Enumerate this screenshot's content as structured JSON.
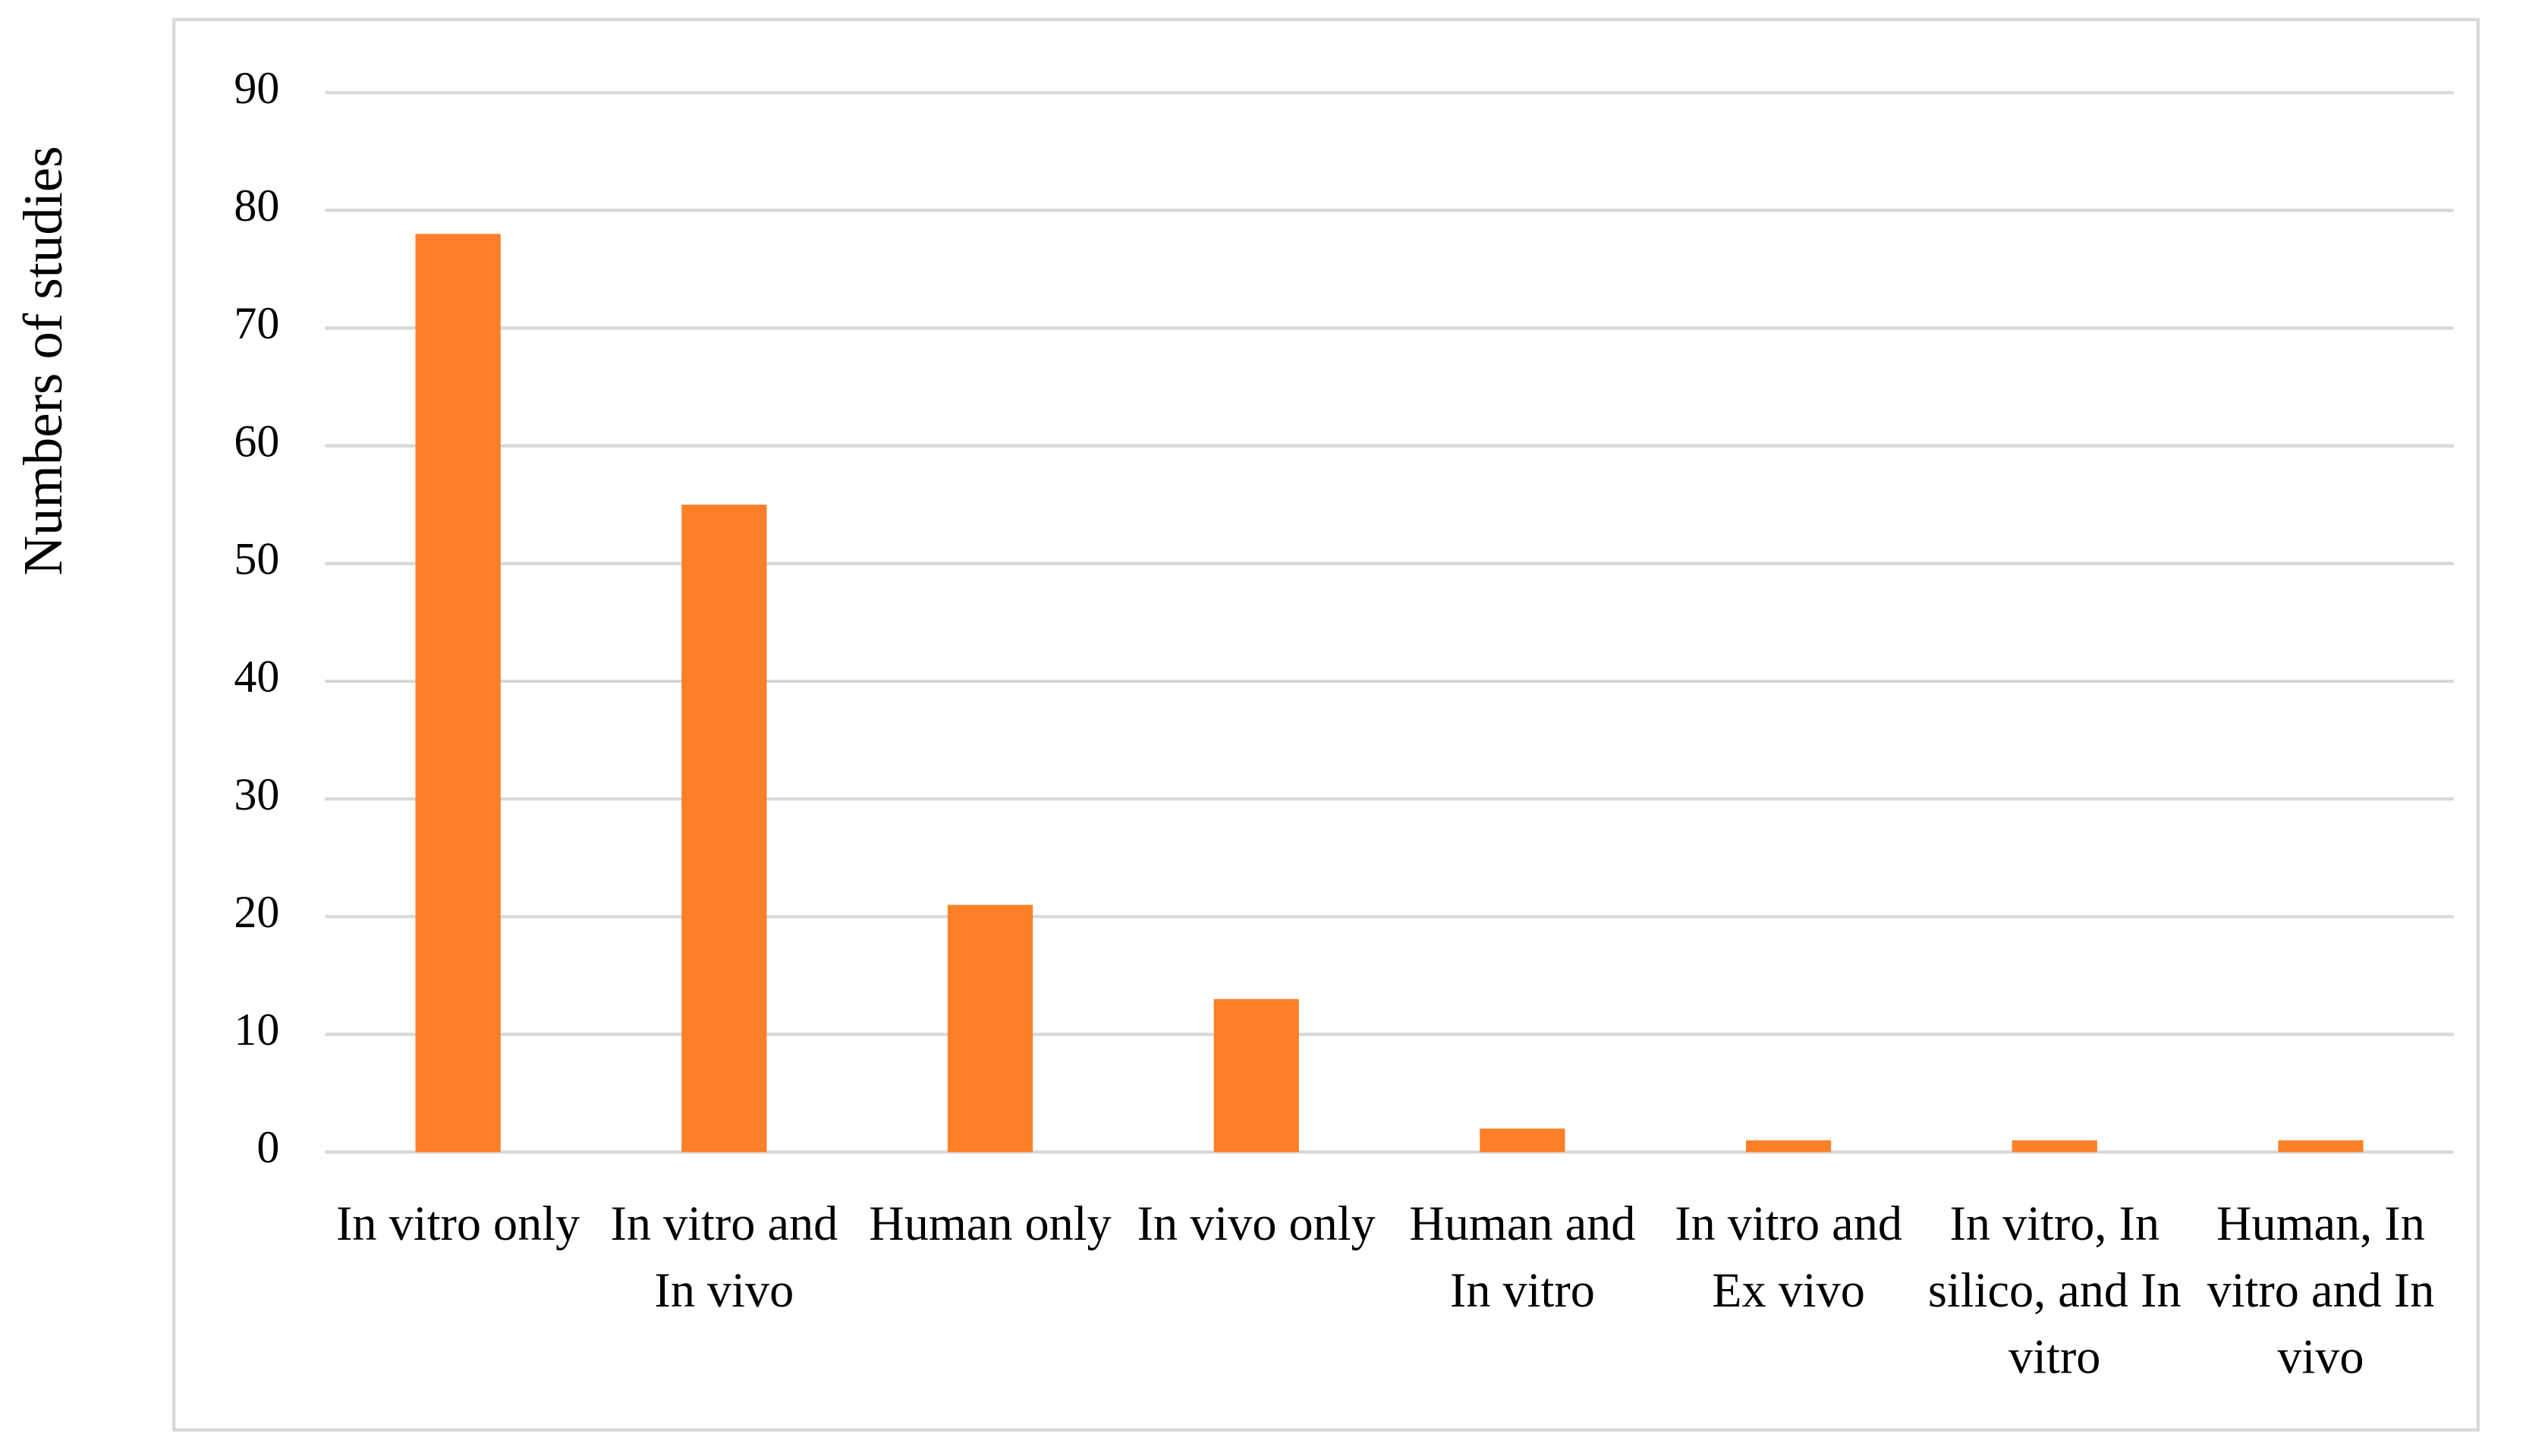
{
  "chart_data": {
    "type": "bar",
    "y_label": "Numbers of studies",
    "categories": [
      "In vitro only",
      "In vitro and In vivo",
      "Human only",
      "In vivo only",
      "Human and In vitro",
      "In vitro and Ex vivo",
      "In vitro, In silico, and In vitro",
      "Human, In vitro and In vivo"
    ],
    "values": [
      78,
      55,
      21,
      13,
      2,
      1,
      1,
      1
    ],
    "color": "#fd7f27",
    "ylim": [
      0,
      90
    ],
    "yticks": [
      0,
      10,
      20,
      30,
      40,
      50,
      60,
      70,
      80,
      90
    ],
    "grid": true
  }
}
